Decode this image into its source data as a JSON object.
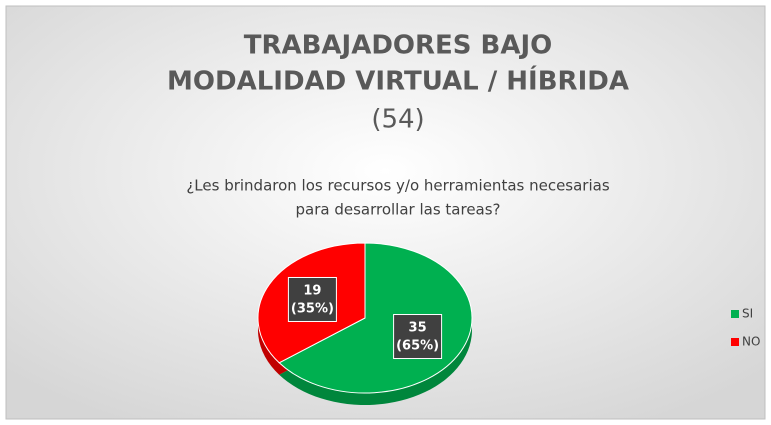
{
  "chart_data": {
    "type": "pie",
    "title": [
      "TRABAJADORES BAJO",
      "MODALIDAD VIRTUAL / HÍBRIDA",
      "(54)"
    ],
    "subtitle": [
      "¿Les brindaron los recursos y/o herramientas necesarias",
      "para desarrollar las tareas?"
    ],
    "categories": [
      "SI",
      "NO"
    ],
    "values": [
      35,
      19
    ],
    "value_labels": [
      "35 (65%)",
      "19 (35%)"
    ],
    "colors": [
      "#00b050",
      "#ff0000"
    ],
    "legend": "right"
  }
}
